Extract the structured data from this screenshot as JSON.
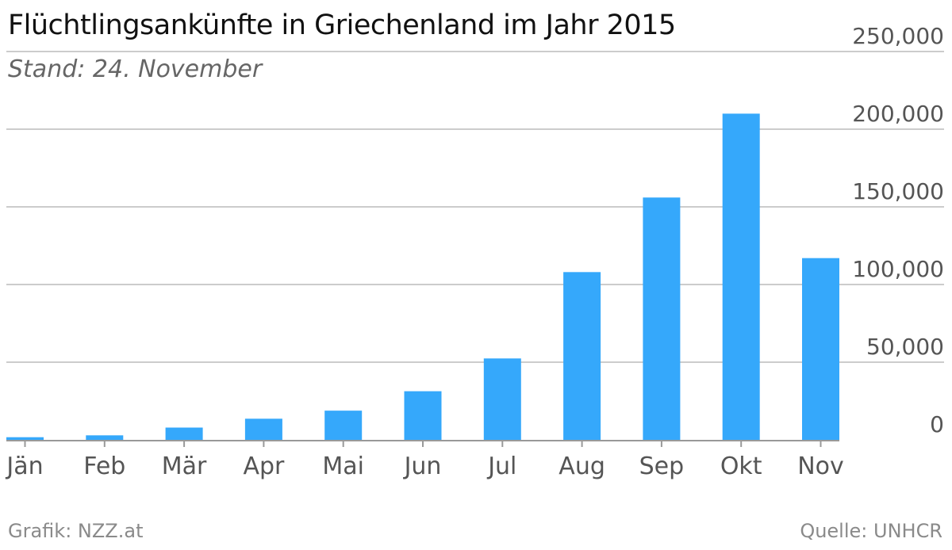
{
  "header": {
    "title": "Flüchtlingsankünfte in Griechenland im Jahr 2015",
    "subtitle": "Stand: 24. November"
  },
  "footer": {
    "credit": "Grafik: NZZ.at",
    "source": "Quelle: UNHCR"
  },
  "colors": {
    "bar": "#35a8fb",
    "grid": "#cccccc",
    "baseline": "#999999"
  },
  "chart_data": {
    "type": "bar",
    "title": "Flüchtlingsankünfte in Griechenland im Jahr 2015",
    "subtitle": "Stand: 24. November",
    "categories": [
      "Jän",
      "Feb",
      "Mär",
      "Apr",
      "Mai",
      "Jun",
      "Jul",
      "Aug",
      "Sep",
      "Okt",
      "Nov"
    ],
    "values": [
      1700,
      2900,
      7900,
      13600,
      18800,
      31300,
      52400,
      108000,
      156000,
      210000,
      117000
    ],
    "ylim": [
      0,
      250000
    ],
    "yticks": [
      0,
      50000,
      100000,
      150000,
      200000,
      250000
    ],
    "ytick_labels": [
      "0",
      "50,000",
      "100,000",
      "150,000",
      "200,000",
      "250,000"
    ],
    "yaxis_position": "right",
    "grid": true,
    "legend": "none"
  }
}
